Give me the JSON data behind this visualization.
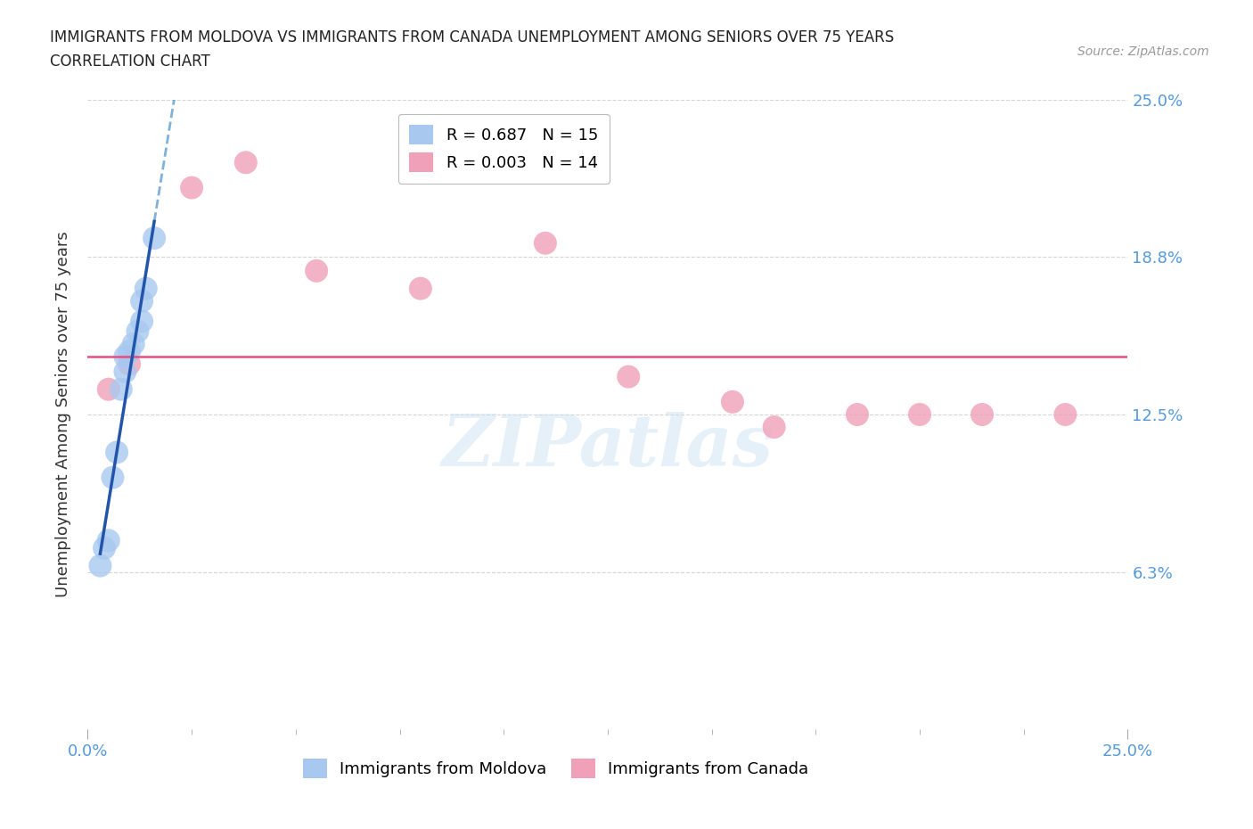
{
  "title_line1": "IMMIGRANTS FROM MOLDOVA VS IMMIGRANTS FROM CANADA UNEMPLOYMENT AMONG SENIORS OVER 75 YEARS",
  "title_line2": "CORRELATION CHART",
  "source": "Source: ZipAtlas.com",
  "ylabel": "Unemployment Among Seniors over 75 years",
  "xlim": [
    0,
    0.25
  ],
  "ylim": [
    0,
    0.25
  ],
  "moldova_color": "#a8c8f0",
  "canada_color": "#f0a0b8",
  "moldova_R": 0.687,
  "moldova_N": 15,
  "canada_R": 0.003,
  "canada_N": 14,
  "moldova_points_x": [
    0.003,
    0.004,
    0.005,
    0.006,
    0.007,
    0.008,
    0.009,
    0.009,
    0.01,
    0.011,
    0.012,
    0.013,
    0.013,
    0.014,
    0.016
  ],
  "moldova_points_y": [
    0.065,
    0.072,
    0.075,
    0.1,
    0.11,
    0.135,
    0.142,
    0.148,
    0.15,
    0.153,
    0.158,
    0.162,
    0.17,
    0.175,
    0.195
  ],
  "canada_points_x": [
    0.005,
    0.01,
    0.025,
    0.038,
    0.055,
    0.08,
    0.11,
    0.13,
    0.155,
    0.165,
    0.185,
    0.2,
    0.215,
    0.235
  ],
  "canada_points_y": [
    0.135,
    0.145,
    0.215,
    0.225,
    0.182,
    0.175,
    0.193,
    0.14,
    0.13,
    0.12,
    0.125,
    0.125,
    0.125,
    0.125
  ],
  "canada_trend_y": 0.148,
  "background_color": "#ffffff",
  "grid_color": "#cccccc",
  "watermark_text": "ZIPatlas",
  "watermark_color": "#c8dff0",
  "watermark_alpha": 0.45
}
